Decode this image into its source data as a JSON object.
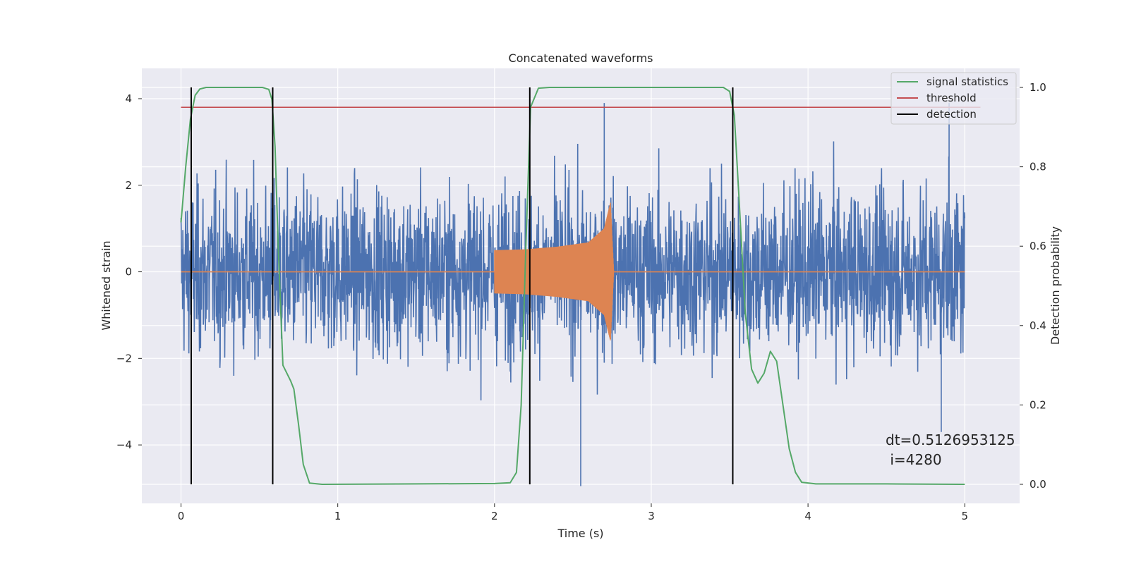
{
  "chart_data": {
    "type": "line",
    "title": "Concatenated waveforms",
    "xlabel": "Time (s)",
    "ylabel": "Whitened strain",
    "ylabel_right": "Detection probability",
    "xlim": [
      -0.25,
      5.35
    ],
    "ylim": [
      -5.35,
      4.7
    ],
    "ylim_right": [
      -0.048,
      1.048
    ],
    "x_ticks": [
      0,
      1,
      2,
      3,
      4,
      5
    ],
    "x_tick_labels": [
      "0",
      "1",
      "2",
      "3",
      "4",
      "5"
    ],
    "y_ticks": [
      -4,
      -2,
      0,
      2,
      4
    ],
    "y_tick_labels": [
      "−4",
      "−2",
      "0",
      "2",
      "4"
    ],
    "y_right_ticks": [
      0.0,
      0.2,
      0.4,
      0.6,
      0.8,
      1.0
    ],
    "y_right_tick_labels": [
      "0.0",
      "0.2",
      "0.4",
      "0.6",
      "0.8",
      "1.0"
    ],
    "grid": true,
    "legend_position": "top-right",
    "colors": {
      "background": "#eaeaf2",
      "grid": "#ffffff",
      "noise": "#4c72b0",
      "waveform": "#dd8452",
      "signal_statistics": "#55a868",
      "threshold": "#c44e52",
      "detection": "#000000"
    },
    "series": [
      {
        "name": "",
        "axis": "left",
        "role": "noise",
        "x_range": [
          0,
          5
        ],
        "typical_amplitude": 1.25,
        "peak_max": 3.9,
        "peak_min": -4.95
      },
      {
        "name": "",
        "axis": "left",
        "role": "waveform",
        "x": [
          2.0,
          2.2,
          2.4,
          2.6,
          2.7,
          2.74,
          2.76
        ],
        "envelope": [
          0.5,
          0.52,
          0.58,
          0.68,
          1.0,
          1.6,
          0.05
        ]
      },
      {
        "name": "signal statistics",
        "axis": "right",
        "x": [
          0.0,
          0.03,
          0.06,
          0.09,
          0.12,
          0.16,
          0.25,
          0.4,
          0.52,
          0.56,
          0.58,
          0.6,
          0.62,
          0.65,
          0.7,
          0.72,
          0.75,
          0.78,
          0.82,
          0.9,
          1.5,
          2.0,
          2.1,
          2.14,
          2.17,
          2.2,
          2.23,
          2.28,
          2.35,
          2.5,
          3.0,
          3.46,
          3.5,
          3.53,
          3.56,
          3.6,
          3.64,
          3.68,
          3.72,
          3.76,
          3.8,
          3.84,
          3.88,
          3.92,
          3.96,
          4.05,
          4.5,
          5.0
        ],
        "y": [
          0.66,
          0.8,
          0.92,
          0.98,
          0.996,
          1.0,
          1.0,
          1.0,
          1.0,
          0.995,
          0.97,
          0.85,
          0.6,
          0.3,
          0.26,
          0.24,
          0.15,
          0.05,
          0.003,
          0.0,
          0.001,
          0.002,
          0.004,
          0.03,
          0.2,
          0.6,
          0.95,
          0.998,
          1.0,
          1.0,
          1.0,
          1.0,
          0.99,
          0.93,
          0.72,
          0.43,
          0.29,
          0.255,
          0.28,
          0.335,
          0.31,
          0.2,
          0.09,
          0.03,
          0.005,
          0.001,
          0.001,
          0.0
        ]
      },
      {
        "name": "threshold",
        "axis": "right",
        "x": [
          0,
          5.1
        ],
        "y": [
          0.95,
          0.95
        ]
      },
      {
        "name": "detection",
        "axis": "right",
        "type": "vertical_lines",
        "x": [
          0.065,
          0.585,
          2.225,
          3.52
        ],
        "y_range": [
          0.0,
          1.0
        ]
      }
    ],
    "annotations": [
      "dt=0.5126953125",
      " i=4280"
    ]
  }
}
